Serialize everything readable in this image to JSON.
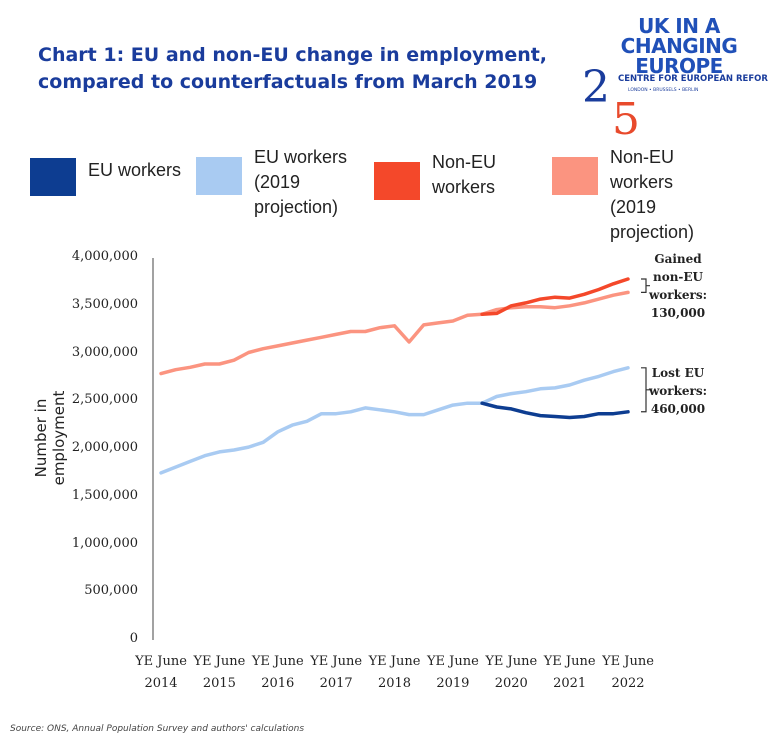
{
  "title": "Chart 1: EU and non-EU change in employment, compared to counterfactuals from March 2019",
  "logo": {
    "line1": "UK IN A",
    "line2": "CHANGING",
    "line3": "EUROPE",
    "cer": "CENTRE FOR EUROPEAN REFORM",
    "cities": "LONDON • BRUSSELS • BERLIN",
    "anniversary": "25"
  },
  "source": "Source: ONS, Annual Population Survey and authors' calculations",
  "chart_data": {
    "type": "line",
    "title": "Chart 1: EU and non-EU change in employment, compared to counterfactuals from March 2019",
    "xlabel": "",
    "ylabel": "Number in employment",
    "ylim": [
      0,
      4000000
    ],
    "xlim": [
      2014,
      2022
    ],
    "y_ticks": [
      "0",
      "500,000",
      "1,000,000",
      "1,500,000",
      "2,000,000",
      "2,500,000",
      "3,000,000",
      "3,500,000",
      "4,000,000"
    ],
    "x_ticks": [
      [
        "YE June",
        "2014"
      ],
      [
        "YE June",
        "2015"
      ],
      [
        "YE June",
        "2016"
      ],
      [
        "YE June",
        "2017"
      ],
      [
        "YE June",
        "2018"
      ],
      [
        "YE June",
        "2019"
      ],
      [
        "YE June",
        "2020"
      ],
      [
        "YE June",
        "2021"
      ],
      [
        "YE June",
        "2022"
      ]
    ],
    "grid": false,
    "legend_position": "top",
    "x": [
      2014,
      2014.25,
      2014.5,
      2014.75,
      2015,
      2015.25,
      2015.5,
      2015.75,
      2016,
      2016.25,
      2016.5,
      2016.75,
      2017,
      2017.25,
      2017.5,
      2017.75,
      2018,
      2018.25,
      2018.5,
      2018.75,
      2019,
      2019.25,
      2019.5,
      2019.75,
      2020,
      2020.25,
      2020.5,
      2020.75,
      2021,
      2021.25,
      2021.5,
      2021.75,
      2022
    ],
    "series": [
      {
        "name": "EU workers (2019 projection)",
        "color": "#a9cbf2",
        "values": [
          1750000,
          1810000,
          1870000,
          1930000,
          1970000,
          1990000,
          2020000,
          2070000,
          2180000,
          2250000,
          2290000,
          2370000,
          2370000,
          2390000,
          2430000,
          2410000,
          2390000,
          2360000,
          2360000,
          2410000,
          2460000,
          2480000,
          2480000,
          2550000,
          2580000,
          2600000,
          2630000,
          2640000,
          2670000,
          2720000,
          2760000,
          2810000,
          2850000
        ]
      },
      {
        "name": "EU workers",
        "color": "#0d3d91",
        "values": [
          null,
          null,
          null,
          null,
          null,
          null,
          null,
          null,
          null,
          null,
          null,
          null,
          null,
          null,
          null,
          null,
          null,
          null,
          null,
          null,
          null,
          null,
          2480000,
          2440000,
          2420000,
          2380000,
          2350000,
          2340000,
          2330000,
          2340000,
          2370000,
          2370000,
          2390000
        ]
      },
      {
        "name": "Non-EU workers (2019 projection)",
        "color": "#fb9480",
        "values": [
          2790000,
          2830000,
          2855000,
          2890000,
          2890000,
          2930000,
          3010000,
          3050000,
          3080000,
          3110000,
          3140000,
          3170000,
          3200000,
          3230000,
          3230000,
          3270000,
          3290000,
          3120000,
          3300000,
          3320000,
          3340000,
          3400000,
          3410000,
          3460000,
          3480000,
          3490000,
          3490000,
          3480000,
          3500000,
          3530000,
          3570000,
          3610000,
          3640000
        ]
      },
      {
        "name": "Non-EU workers",
        "color": "#f4482a",
        "values": [
          null,
          null,
          null,
          null,
          null,
          null,
          null,
          null,
          null,
          null,
          null,
          null,
          null,
          null,
          null,
          null,
          null,
          null,
          null,
          null,
          null,
          null,
          3410000,
          3420000,
          3500000,
          3530000,
          3570000,
          3590000,
          3580000,
          3620000,
          3670000,
          3730000,
          3780000
        ]
      }
    ],
    "annotations": [
      {
        "text": [
          "Gained",
          "non-EU",
          "workers:",
          "130,000"
        ]
      },
      {
        "text": [
          "Lost EU",
          "workers:",
          "460,000"
        ]
      }
    ]
  },
  "legend": [
    {
      "lines": [
        "EU workers"
      ],
      "color": "#0d3d91"
    },
    {
      "lines": [
        "EU workers",
        "(2019",
        "projection)"
      ],
      "color": "#a9cbf2"
    },
    {
      "lines": [
        "Non-EU",
        "workers"
      ],
      "color": "#f4482a"
    },
    {
      "lines": [
        "Non-EU",
        "workers",
        "(2019",
        "projection)"
      ],
      "color": "#fb9480"
    }
  ]
}
